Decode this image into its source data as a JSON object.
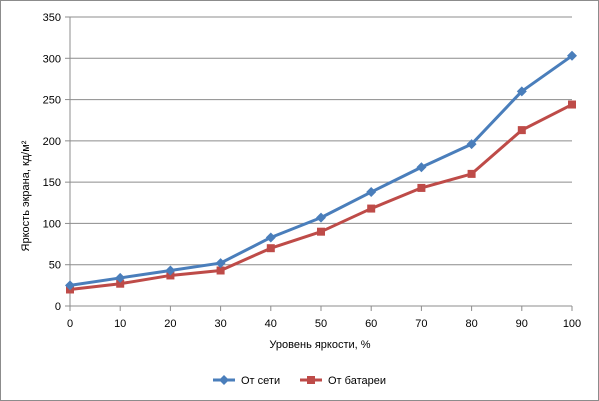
{
  "chart_data": {
    "type": "line",
    "xlabel": "Уровень яркости, %",
    "ylabel": "Яркость экрана, кд/м²",
    "x": [
      0,
      10,
      20,
      30,
      40,
      50,
      60,
      70,
      80,
      90,
      100
    ],
    "xlim": [
      0,
      100
    ],
    "ylim": [
      0,
      350
    ],
    "x_ticks": [
      0,
      10,
      20,
      30,
      40,
      50,
      60,
      70,
      80,
      90,
      100
    ],
    "y_ticks": [
      0,
      50,
      100,
      150,
      200,
      250,
      300,
      350
    ],
    "grid": "horizontal",
    "legend_position": "bottom",
    "series": [
      {
        "name": "От сети",
        "color": "#4a7ebb",
        "marker": "diamond",
        "values": [
          25,
          34,
          43,
          52,
          83,
          107,
          138,
          168,
          196,
          260,
          303
        ]
      },
      {
        "name": "От батареи",
        "color": "#be4b48",
        "marker": "square",
        "values": [
          20,
          27,
          37,
          43,
          70,
          90,
          118,
          143,
          160,
          213,
          244
        ]
      }
    ]
  }
}
